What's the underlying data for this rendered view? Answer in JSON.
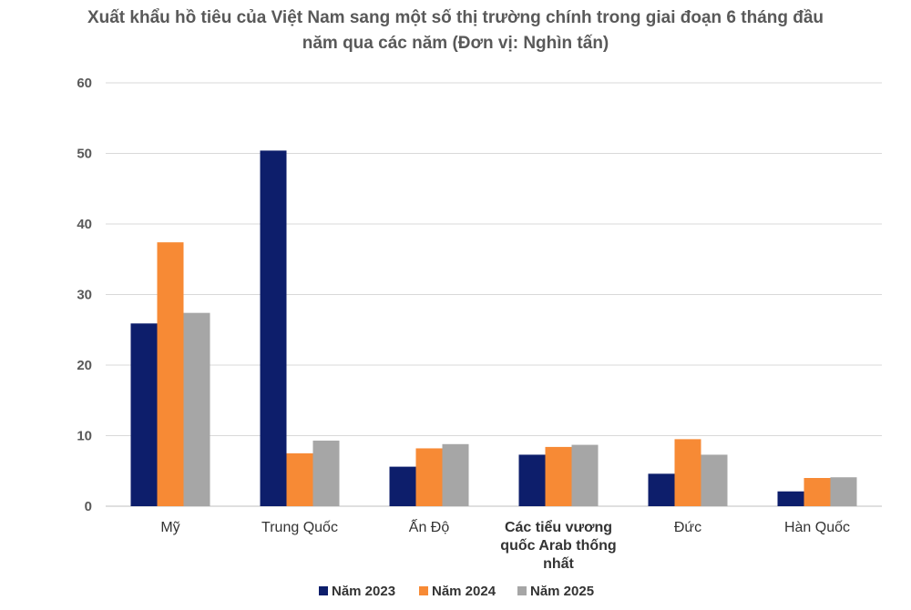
{
  "chart_data": {
    "type": "bar",
    "title_lines": [
      "Xuất khẩu hồ tiêu của Việt Nam sang một số thị trường chính trong giai đoạn 6 tháng đầu",
      "năm qua các năm (Đơn vị: Nghìn tấn)"
    ],
    "categories": [
      [
        "Mỹ"
      ],
      [
        "Trung Quốc"
      ],
      [
        "Ấn Độ"
      ],
      [
        "Các tiểu vương",
        "quốc Arab thống",
        "nhất"
      ],
      [
        "Đức"
      ],
      [
        "Hàn Quốc"
      ]
    ],
    "series": [
      {
        "name": "Năm 2023",
        "color": "#0d1e6b",
        "values": [
          25.9,
          50.4,
          5.6,
          7.3,
          4.6,
          2.1
        ]
      },
      {
        "name": "Năm 2024",
        "color": "#f78a35",
        "values": [
          37.4,
          7.5,
          8.2,
          8.4,
          9.5,
          4.0
        ]
      },
      {
        "name": "Năm 2025",
        "color": "#a6a6a6",
        "values": [
          27.4,
          9.3,
          8.8,
          8.7,
          7.3,
          4.1
        ]
      }
    ],
    "yticks": [
      "0",
      "10",
      "20",
      "30",
      "40",
      "50",
      "60"
    ],
    "ylim": [
      0,
      60
    ],
    "grid": true,
    "legend": "bottom"
  }
}
